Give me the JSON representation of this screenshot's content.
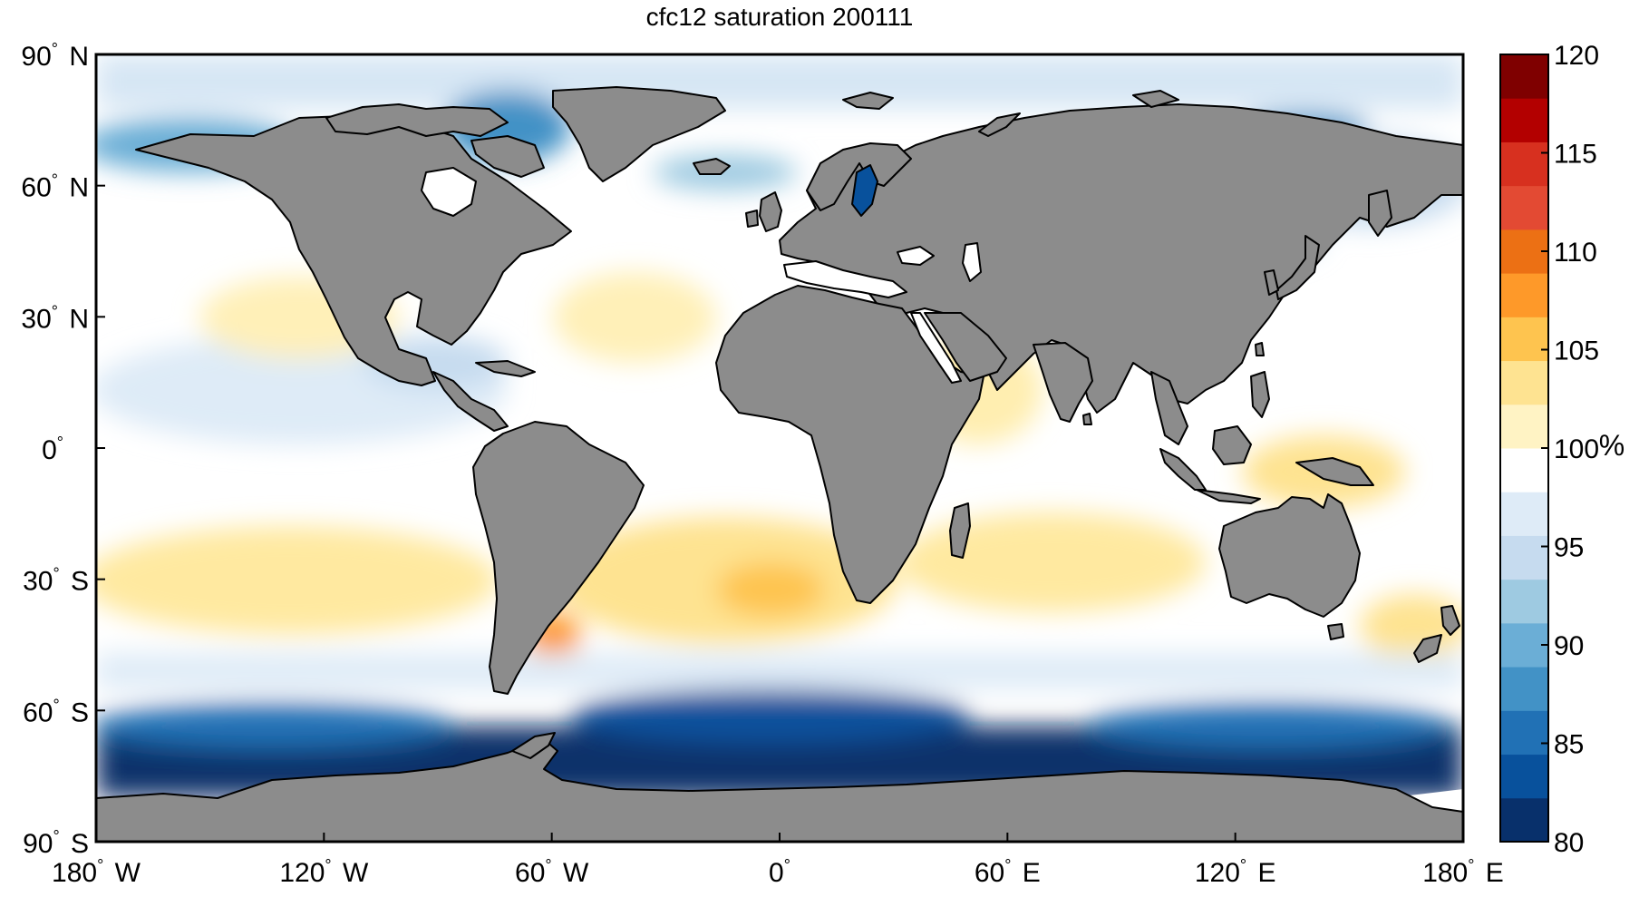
{
  "title": "cfc12 saturation 200111",
  "axes": {
    "y_ticks": [
      {
        "lat": 90,
        "label": "90",
        "hemi": "N"
      },
      {
        "lat": 60,
        "label": "60",
        "hemi": "N"
      },
      {
        "lat": 30,
        "label": "30",
        "hemi": "N"
      },
      {
        "lat": 0,
        "label": "0",
        "hemi": ""
      },
      {
        "lat": -30,
        "label": "30",
        "hemi": "S"
      },
      {
        "lat": -60,
        "label": "60",
        "hemi": "S"
      },
      {
        "lat": -90,
        "label": "90",
        "hemi": "S"
      }
    ],
    "x_ticks": [
      {
        "lon": -180,
        "label": "180",
        "hemi": "W"
      },
      {
        "lon": -120,
        "label": "120",
        "hemi": "W"
      },
      {
        "lon": -60,
        "label": "60",
        "hemi": "W"
      },
      {
        "lon": 0,
        "label": "0",
        "hemi": ""
      },
      {
        "lon": 60,
        "label": "60",
        "hemi": "E"
      },
      {
        "lon": 120,
        "label": "120",
        "hemi": "E"
      },
      {
        "lon": 180,
        "label": "180",
        "hemi": "E"
      }
    ],
    "lon_range": [
      -180,
      180
    ],
    "lat_range": [
      -90,
      90
    ]
  },
  "colorbar": {
    "min": 80,
    "max": 120,
    "ticks": [
      80,
      85,
      90,
      95,
      100,
      105,
      110,
      115,
      120
    ],
    "unit": "%",
    "colors": [
      "#08306b",
      "#08519c",
      "#2171b5",
      "#4292c6",
      "#6baed6",
      "#9ecae1",
      "#c6dbef",
      "#deebf7",
      "#ffffff",
      "#fff3c4",
      "#fee391",
      "#fec44f",
      "#fe9929",
      "#ec7014",
      "#e34a33",
      "#d7301f",
      "#b30000",
      "#7f0000"
    ]
  },
  "colors": {
    "land": "#8c8c8c",
    "coast": "#000000",
    "ocean_neutral": "#ffffff"
  },
  "legend_title": "%"
}
